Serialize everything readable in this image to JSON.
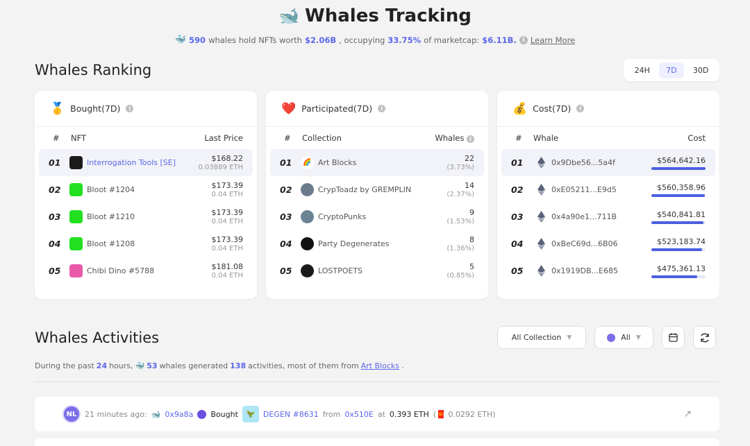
{
  "header": {
    "title": "Whales Tracking",
    "whale_count": "590",
    "text1": "whales hold NFTs worth",
    "worth": "$2.06B",
    "text2": ", occupying",
    "percent": "33.75%",
    "text3": "of marketcap:",
    "marketcap": "$6.11B.",
    "learn_more": "Learn More"
  },
  "ranking": {
    "title": "Whales Ranking",
    "periods": [
      "24H",
      "7D",
      "30D"
    ],
    "active_period": "7D",
    "bought": {
      "title": "Bought(7D)",
      "col_num": "#",
      "col_name": "NFT",
      "col_right": "Last Price",
      "rows": [
        {
          "rank": "01",
          "name": "Interrogation Tools [SE]",
          "price": "$168.22",
          "sub": "0.03889 ETH",
          "color": "#1a1a1a"
        },
        {
          "rank": "02",
          "name": "Bloot #1204",
          "price": "$173.39",
          "sub": "0.04 ETH",
          "color": "#22e01f"
        },
        {
          "rank": "03",
          "name": "Bloot #1210",
          "price": "$173.39",
          "sub": "0.04 ETH",
          "color": "#22e01f"
        },
        {
          "rank": "04",
          "name": "Bloot #1208",
          "price": "$173.39",
          "sub": "0.04 ETH",
          "color": "#22e01f"
        },
        {
          "rank": "05",
          "name": "Chibi Dino #5788",
          "price": "$181.08",
          "sub": "0.04 ETH",
          "color": "#e85aa8"
        }
      ]
    },
    "participated": {
      "title": "Participated(7D)",
      "col_num": "#",
      "col_name": "Collection",
      "col_right": "Whales",
      "rows": [
        {
          "rank": "01",
          "name": "Art Blocks",
          "count": "22",
          "pct": "(3.73%)",
          "color": "#ffffff"
        },
        {
          "rank": "02",
          "name": "CrypToadz by GREMPLIN",
          "count": "14",
          "pct": "(2.37%)",
          "color": "#6b7a8c"
        },
        {
          "rank": "03",
          "name": "CryptoPunks",
          "count": "9",
          "pct": "(1.53%)",
          "color": "#6a8494"
        },
        {
          "rank": "04",
          "name": "Party Degenerates",
          "count": "8",
          "pct": "(1.36%)",
          "color": "#111111"
        },
        {
          "rank": "05",
          "name": "LOSTPOETS",
          "count": "5",
          "pct": "(0.85%)",
          "color": "#1a1a1a"
        }
      ]
    },
    "cost": {
      "title": "Cost(7D)",
      "col_num": "#",
      "col_name": "Whale",
      "col_right": "Cost",
      "rows": [
        {
          "rank": "01",
          "addr": "0x9Dbe56...5a4f",
          "cost": "$564,642.16",
          "fill": 1.0
        },
        {
          "rank": "02",
          "addr": "0xE05211...E9d5",
          "cost": "$560,358.96",
          "fill": 0.99
        },
        {
          "rank": "03",
          "addr": "0x4a90e1...711B",
          "cost": "$540,841.81",
          "fill": 0.96
        },
        {
          "rank": "04",
          "addr": "0xBeC69d...6B06",
          "cost": "$523,183.74",
          "fill": 0.93
        },
        {
          "rank": "05",
          "addr": "0x1919DB...E685",
          "cost": "$475,361.13",
          "fill": 0.84
        }
      ]
    }
  },
  "activities": {
    "title": "Whales Activities",
    "filter_collection": "All Collection",
    "filter_type": "All",
    "desc_prefix": "During the past",
    "hours": "24",
    "desc_hours": "hours,",
    "whales": "53",
    "desc_mid": "whales generated",
    "count": "138",
    "desc_suffix": "activities, most of them from",
    "top_collection": "Art Blocks",
    "item": {
      "time": "21 minutes ago:",
      "whale": "0x9a8a",
      "action": "Bought",
      "nft": "DEGEN #8631",
      "from_label": "from",
      "from": "0x510E",
      "at_label": "at",
      "price": "0.393 ETH",
      "sub_price": "0.0292 ETH)"
    }
  },
  "colors": {
    "accent": "#5b67e8",
    "bar": "#4c5fe0"
  }
}
